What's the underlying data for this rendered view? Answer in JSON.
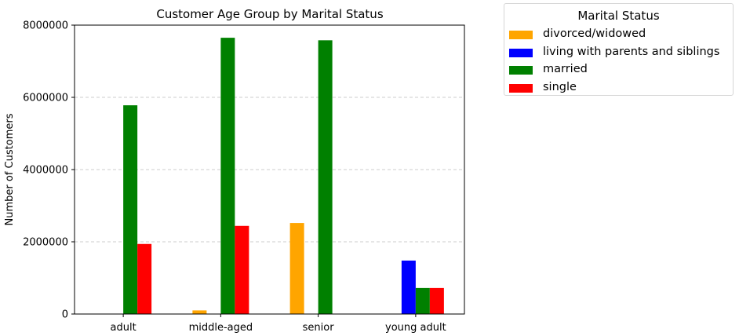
{
  "chart_data": {
    "type": "bar",
    "title": "Customer Age Group by Marital Status",
    "xlabel": "",
    "ylabel": "Number of Customers",
    "ylim": [
      0,
      8000000
    ],
    "yticks": [
      "0",
      "2000000",
      "4000000",
      "6000000",
      "8000000"
    ],
    "ytick_values": [
      0,
      2000000,
      4000000,
      6000000,
      8000000
    ],
    "grid": "y-dashed",
    "categories": [
      "adult",
      "middle-aged",
      "senior",
      "young adult"
    ],
    "series": [
      {
        "name": "divorced/widowed",
        "color": "#ffa500",
        "values": [
          0,
          100000,
          2520000,
          0
        ]
      },
      {
        "name": "living with parents and siblings",
        "color": "#0000ff",
        "values": [
          0,
          0,
          0,
          1480000
        ]
      },
      {
        "name": "married",
        "color": "#008000",
        "values": [
          5780000,
          7650000,
          7580000,
          720000
        ]
      },
      {
        "name": "single",
        "color": "#ff0000",
        "values": [
          1940000,
          2440000,
          0,
          720000
        ]
      }
    ],
    "legend": {
      "title": "Marital Status",
      "placement": "outside-top-right"
    }
  }
}
